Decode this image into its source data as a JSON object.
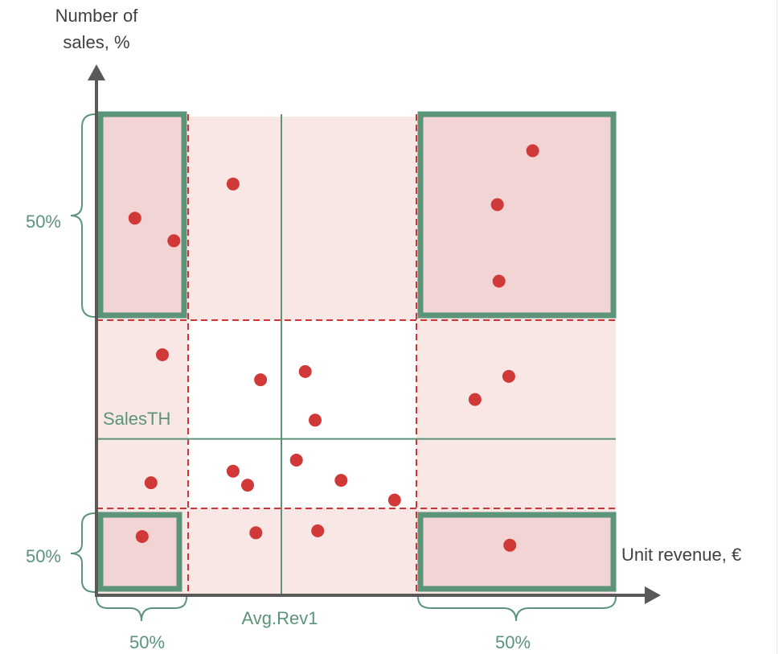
{
  "chart_data": {
    "type": "scatter",
    "title": "",
    "xlabel": "Unit revenue, €",
    "ylabel": "Number of sales, %",
    "xlim": [
      0,
      100
    ],
    "ylim": [
      0,
      100
    ],
    "grid": false,
    "reference_lines": {
      "vertical": {
        "label": "Avg.Rev1",
        "x": 35.6
      },
      "horizontal": {
        "label": "SalesTH",
        "y": 32.5
      }
    },
    "bracket_labels": {
      "left_top": "50%",
      "left_bottom": "50%",
      "bottom_left": "50%",
      "bottom_right": "50%"
    },
    "points": [
      {
        "x": 7.4,
        "y": 78.4
      },
      {
        "x": 14.9,
        "y": 73.7
      },
      {
        "x": 26.3,
        "y": 85.5
      },
      {
        "x": 77.2,
        "y": 81.2
      },
      {
        "x": 77.5,
        "y": 65.3
      },
      {
        "x": 84.0,
        "y": 92.4
      },
      {
        "x": 12.7,
        "y": 50.0
      },
      {
        "x": 31.6,
        "y": 44.8
      },
      {
        "x": 40.2,
        "y": 46.5
      },
      {
        "x": 42.1,
        "y": 36.4
      },
      {
        "x": 72.9,
        "y": 40.7
      },
      {
        "x": 79.4,
        "y": 45.5
      },
      {
        "x": 10.5,
        "y": 23.4
      },
      {
        "x": 26.3,
        "y": 25.8
      },
      {
        "x": 29.1,
        "y": 22.9
      },
      {
        "x": 38.5,
        "y": 28.1
      },
      {
        "x": 47.1,
        "y": 23.9
      },
      {
        "x": 57.4,
        "y": 19.8
      },
      {
        "x": 8.8,
        "y": 12.2
      },
      {
        "x": 30.7,
        "y": 13.0
      },
      {
        "x": 42.6,
        "y": 13.4
      },
      {
        "x": 79.6,
        "y": 10.4
      }
    ]
  }
}
